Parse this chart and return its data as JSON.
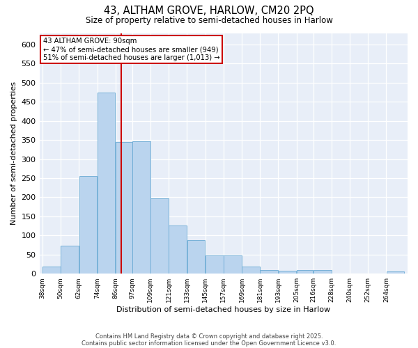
{
  "title_line1": "43, ALTHAM GROVE, HARLOW, CM20 2PQ",
  "title_line2": "Size of property relative to semi-detached houses in Harlow",
  "xlabel": "Distribution of semi-detached houses by size in Harlow",
  "ylabel": "Number of semi-detached properties",
  "bar_color": "#bad4ee",
  "bar_edge_color": "#6aaad4",
  "vline_color": "#cc0000",
  "vline_x": 90,
  "annotation_title": "43 ALTHAM GROVE: 90sqm",
  "annotation_line1": "← 47% of semi-detached houses are smaller (949)",
  "annotation_line2": "51% of semi-detached houses are larger (1,013) →",
  "annotation_box_color": "#cc0000",
  "bins": [
    38,
    50,
    62,
    74,
    86,
    97,
    109,
    121,
    133,
    145,
    157,
    169,
    181,
    193,
    205,
    216,
    228,
    240,
    252,
    264,
    276
  ],
  "values": [
    18,
    74,
    255,
    474,
    344,
    347,
    197,
    127,
    88,
    47,
    47,
    18,
    9,
    8,
    10,
    9,
    1,
    0,
    0,
    5
  ],
  "ylim": [
    0,
    630
  ],
  "yticks": [
    0,
    50,
    100,
    150,
    200,
    250,
    300,
    350,
    400,
    450,
    500,
    550,
    600
  ],
  "background_color": "#e8eef8",
  "footnote_line1": "Contains HM Land Registry data © Crown copyright and database right 2025.",
  "footnote_line2": "Contains public sector information licensed under the Open Government Licence v3.0.",
  "fig_width": 6.0,
  "fig_height": 5.0,
  "dpi": 100
}
